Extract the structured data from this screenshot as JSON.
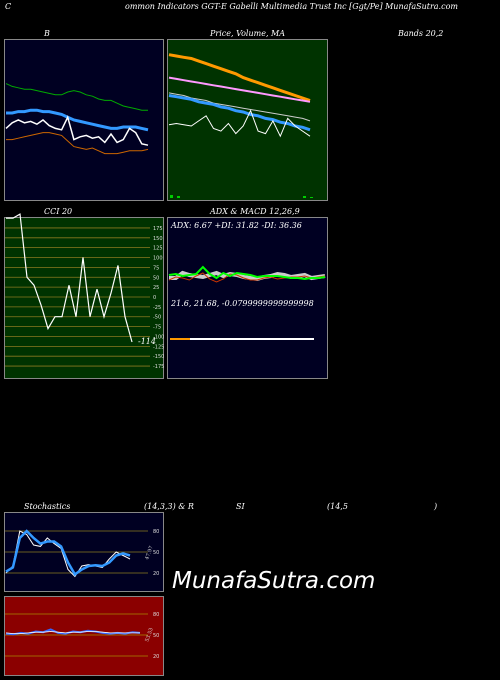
{
  "header": "ommon  Indicators GGT-E Gabelli  Multimedia  Trust Inc [Ggt/Pe] MunafaSutra.com",
  "header_c": "C",
  "labels": {
    "b": "B",
    "price": "Price,  Volume,  MA",
    "bands": "Bands 20,2",
    "cci": "CCI 20",
    "adx": "ADX  & MACD 12,26,9",
    "adx_vals": "ADX: 6.67  +DI: 31.82  -DI: 36.36",
    "macd_vals": "21.6,  21.68,  -0.0799999999999998",
    "cci_val": "-114",
    "stoch_a": "Stochastics",
    "stoch_b": "(14,3,3) & R",
    "stoch_c": "SI",
    "stoch_d": "(14,5",
    "stoch_e": ")",
    "stoch_val": "47.97",
    "rsi_val": "53.53"
  },
  "watermark": "MunafaSutra.com",
  "colors": {
    "green_panel": "#003300",
    "red_panel": "#8b0000",
    "navy": "#000022"
  },
  "chart_data": [
    {
      "type": "line",
      "name": "bollinger",
      "series": [
        {
          "values": [
            76,
            74,
            73,
            72,
            72,
            71,
            70,
            69,
            68,
            68,
            70,
            71,
            70,
            68,
            67,
            65,
            64,
            64,
            62,
            60,
            59,
            58,
            57,
            57
          ]
        },
        {
          "values": [
            55,
            55,
            56,
            56,
            57,
            57,
            56,
            56,
            55,
            54,
            52,
            50,
            49,
            48,
            47,
            46,
            45,
            44,
            44,
            45,
            45,
            45,
            44,
            43
          ]
        },
        {
          "values": [
            36,
            36,
            37,
            38,
            39,
            40,
            41,
            41,
            40,
            39,
            35,
            31,
            30,
            29,
            30,
            28,
            26,
            26,
            26,
            27,
            28,
            28,
            28,
            29
          ]
        },
        {
          "values": [
            44,
            48,
            50,
            48,
            49,
            47,
            50,
            46,
            44,
            43,
            52,
            36,
            38,
            39,
            37,
            38,
            34,
            40,
            34,
            36,
            44,
            41,
            33,
            32
          ]
        }
      ],
      "ylim": [
        0,
        100
      ]
    },
    {
      "type": "line",
      "name": "price_volume_ma",
      "series": [
        {
          "values": [
            100,
            99,
            98,
            97,
            95,
            93,
            91,
            89,
            87,
            85,
            82,
            80,
            78,
            76,
            74,
            72,
            70,
            68,
            66,
            64
          ]
        },
        {
          "values": [
            82,
            81,
            80,
            79,
            78,
            77,
            76,
            75,
            74,
            73,
            72,
            71,
            70,
            69,
            68,
            67,
            66,
            65,
            64,
            63
          ]
        },
        {
          "values": [
            70,
            69,
            68,
            66,
            65,
            64,
            62,
            61,
            60,
            59,
            58,
            57,
            56,
            55,
            54,
            53,
            52,
            51,
            50,
            48
          ]
        },
        {
          "values": [
            68,
            67,
            66,
            65,
            63,
            62,
            61,
            59,
            58,
            56,
            55,
            53,
            52,
            50,
            49,
            47,
            46,
            44,
            43,
            41
          ]
        },
        {
          "values": [
            45,
            46,
            45,
            44,
            48,
            52,
            42,
            40,
            46,
            38,
            44,
            56,
            40,
            38,
            48,
            36,
            50,
            44,
            40,
            36
          ]
        }
      ],
      "volume": [
        3,
        2,
        0,
        0,
        0,
        0,
        0,
        0,
        0,
        0,
        0,
        0,
        0,
        0,
        0,
        0,
        0,
        0,
        0,
        2,
        1
      ],
      "ylim": [
        0,
        110
      ]
    },
    {
      "type": "line",
      "name": "cci",
      "series": [
        {
          "values": [
            200,
            200,
            210,
            50,
            30,
            -20,
            -80,
            -50,
            -50,
            30,
            -50,
            100,
            -50,
            20,
            -50,
            10,
            80,
            -50,
            -114
          ]
        }
      ],
      "ticks": [
        175,
        150,
        125,
        100,
        75,
        50,
        25,
        0,
        -25,
        -50,
        -75,
        -100,
        -125,
        -150,
        -175
      ],
      "ylim": [
        -190,
        190
      ]
    },
    {
      "type": "line",
      "name": "adx_macd",
      "series": [
        {
          "values": [
            22,
            22,
            27,
            25,
            24,
            23,
            25,
            27,
            24,
            26,
            25,
            23,
            22,
            21,
            23,
            24,
            26,
            25,
            23,
            24,
            25,
            22,
            23,
            24
          ]
        },
        {
          "values": [
            20,
            23,
            22,
            20,
            24,
            27,
            21,
            18,
            21,
            26,
            25,
            22,
            20,
            20,
            22,
            23,
            21,
            22,
            23,
            23,
            24,
            22,
            23,
            24
          ]
        },
        {
          "values": [
            25,
            26,
            24,
            25,
            26,
            33,
            26,
            22,
            27,
            24,
            27,
            26,
            25,
            23,
            24,
            24,
            24,
            23,
            22,
            22,
            21,
            22,
            22,
            23
          ]
        }
      ],
      "ylim": [
        0,
        60
      ]
    },
    {
      "type": "line",
      "name": "stochastics",
      "series": [
        {
          "values": [
            20,
            30,
            80,
            75,
            60,
            58,
            70,
            62,
            55,
            25,
            15,
            30,
            32,
            30,
            28,
            40,
            50,
            45,
            40
          ]
        },
        {
          "values": [
            22,
            28,
            70,
            80,
            70,
            62,
            65,
            65,
            58,
            35,
            18,
            25,
            30,
            31,
            30,
            35,
            45,
            48,
            45
          ]
        }
      ],
      "ticks": [
        80,
        50,
        20
      ],
      "ylim": [
        0,
        100
      ]
    },
    {
      "type": "line",
      "name": "rsi",
      "series": [
        {
          "values": [
            52,
            51,
            53,
            52,
            55,
            54,
            58,
            53,
            52,
            55,
            54,
            56,
            55,
            53,
            52,
            53,
            52,
            54,
            53
          ]
        },
        {
          "values": [
            53,
            52,
            52,
            53,
            54,
            54,
            55,
            54,
            53,
            54,
            54,
            55,
            55,
            54,
            53,
            53,
            53,
            53,
            53
          ]
        }
      ],
      "ticks": [
        80,
        50,
        20
      ],
      "ylim": [
        0,
        100
      ]
    }
  ]
}
